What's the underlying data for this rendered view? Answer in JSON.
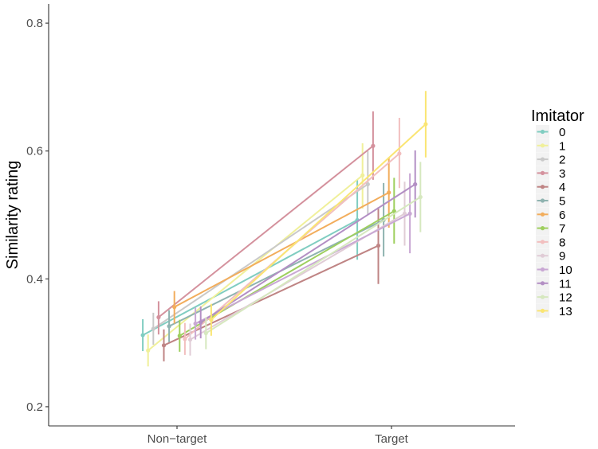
{
  "chart_data": {
    "type": "line",
    "title": "",
    "xlabel": "",
    "ylabel": "Similarity rating",
    "ylim": [
      0.17,
      0.83
    ],
    "yticks": [
      "0.2",
      "0.4",
      "0.6",
      "0.8"
    ],
    "categories": [
      "Non−target",
      "Target"
    ],
    "legend_title": "Imitator",
    "legend_position": "right",
    "grid": false,
    "series": [
      {
        "name": "0",
        "color": "#80cdc1",
        "values": [
          0.312,
          0.492
        ],
        "ci": [
          [
            0.287,
            0.337
          ],
          [
            0.43,
            0.555
          ]
        ]
      },
      {
        "name": "1",
        "color": "#f0f09a",
        "values": [
          0.288,
          0.562
        ],
        "ci": [
          [
            0.263,
            0.313
          ],
          [
            0.51,
            0.612
          ]
        ]
      },
      {
        "name": "2",
        "color": "#c9c9c9",
        "values": [
          0.322,
          0.548
        ],
        "ci": [
          [
            0.297,
            0.347
          ],
          [
            0.5,
            0.6
          ]
        ]
      },
      {
        "name": "3",
        "color": "#d4919d",
        "values": [
          0.34,
          0.608
        ],
        "ci": [
          [
            0.313,
            0.365
          ],
          [
            0.555,
            0.662
          ]
        ]
      },
      {
        "name": "4",
        "color": "#bf8484",
        "values": [
          0.296,
          0.452
        ],
        "ci": [
          [
            0.271,
            0.321
          ],
          [
            0.392,
            0.512
          ]
        ]
      },
      {
        "name": "5",
        "color": "#8fb3b0",
        "values": [
          0.326,
          0.492
        ],
        "ci": [
          [
            0.301,
            0.351
          ],
          [
            0.435,
            0.55
          ]
        ]
      },
      {
        "name": "6",
        "color": "#f2ad5c",
        "values": [
          0.356,
          0.535
        ],
        "ci": [
          [
            0.33,
            0.381
          ],
          [
            0.48,
            0.59
          ]
        ]
      },
      {
        "name": "7",
        "color": "#9ecf5e",
        "values": [
          0.311,
          0.506
        ],
        "ci": [
          [
            0.286,
            0.336
          ],
          [
            0.455,
            0.558
          ]
        ]
      },
      {
        "name": "8",
        "color": "#f2bfbf",
        "values": [
          0.306,
          0.596
        ],
        "ci": [
          [
            0.281,
            0.331
          ],
          [
            0.542,
            0.652
          ]
        ]
      },
      {
        "name": "9",
        "color": "#e0ccd6",
        "values": [
          0.305,
          0.502
        ],
        "ci": [
          [
            0.28,
            0.33
          ],
          [
            0.452,
            0.552
          ]
        ]
      },
      {
        "name": "10",
        "color": "#c9a8d4",
        "values": [
          0.33,
          0.502
        ],
        "ci": [
          [
            0.305,
            0.355
          ],
          [
            0.44,
            0.565
          ]
        ]
      },
      {
        "name": "11",
        "color": "#b38fc4",
        "values": [
          0.332,
          0.548
        ],
        "ci": [
          [
            0.307,
            0.357
          ],
          [
            0.496,
            0.601
          ]
        ]
      },
      {
        "name": "12",
        "color": "#d6e8bf",
        "values": [
          0.315,
          0.528
        ],
        "ci": [
          [
            0.29,
            0.34
          ],
          [
            0.473,
            0.583
          ]
        ]
      },
      {
        "name": "13",
        "color": "#fae573",
        "values": [
          0.336,
          0.642
        ],
        "ci": [
          [
            0.311,
            0.361
          ],
          [
            0.59,
            0.694
          ]
        ]
      }
    ]
  }
}
